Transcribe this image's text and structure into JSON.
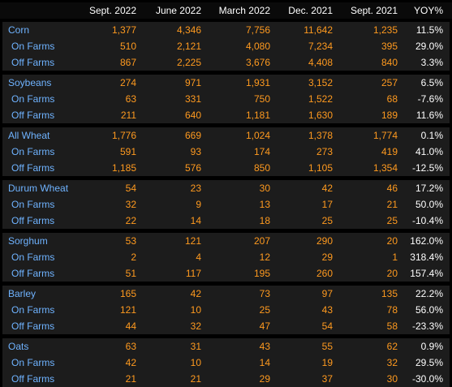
{
  "columns": [
    "Sept. 2022",
    "June 2022",
    "March 2022",
    "Dec. 2021",
    "Sept. 2021",
    "YOY%"
  ],
  "groups": [
    {
      "name": "Corn",
      "rows": [
        {
          "label": "Corn",
          "values": [
            "1,377",
            "4,346",
            "7,756",
            "11,642",
            "1,235",
            "11.5%"
          ]
        },
        {
          "label": "On Farms",
          "values": [
            "510",
            "2,121",
            "4,080",
            "7,234",
            "395",
            "29.0%"
          ]
        },
        {
          "label": "Off Farms",
          "values": [
            "867",
            "2,225",
            "3,676",
            "4,408",
            "840",
            "3.3%"
          ]
        }
      ]
    },
    {
      "name": "Soybeans",
      "rows": [
        {
          "label": "Soybeans",
          "values": [
            "274",
            "971",
            "1,931",
            "3,152",
            "257",
            "6.5%"
          ]
        },
        {
          "label": "On Farms",
          "values": [
            "63",
            "331",
            "750",
            "1,522",
            "68",
            "-7.6%"
          ]
        },
        {
          "label": "Off Farms",
          "values": [
            "211",
            "640",
            "1,181",
            "1,630",
            "189",
            "11.6%"
          ]
        }
      ]
    },
    {
      "name": "All Wheat",
      "rows": [
        {
          "label": "All Wheat",
          "values": [
            "1,776",
            "669",
            "1,024",
            "1,378",
            "1,774",
            "0.1%"
          ]
        },
        {
          "label": "On Farms",
          "values": [
            "591",
            "93",
            "174",
            "273",
            "419",
            "41.0%"
          ]
        },
        {
          "label": "Off Farms",
          "values": [
            "1,185",
            "576",
            "850",
            "1,105",
            "1,354",
            "-12.5%"
          ]
        }
      ]
    },
    {
      "name": "Durum Wheat",
      "rows": [
        {
          "label": "Durum Wheat",
          "values": [
            "54",
            "23",
            "30",
            "42",
            "46",
            "17.2%"
          ]
        },
        {
          "label": "On Farms",
          "values": [
            "32",
            "9",
            "13",
            "17",
            "21",
            "50.0%"
          ]
        },
        {
          "label": "Off Farms",
          "values": [
            "22",
            "14",
            "18",
            "25",
            "25",
            "-10.4%"
          ]
        }
      ]
    },
    {
      "name": "Sorghum",
      "rows": [
        {
          "label": "Sorghum",
          "values": [
            "53",
            "121",
            "207",
            "290",
            "20",
            "162.0%"
          ]
        },
        {
          "label": "On Farms",
          "values": [
            "2",
            "4",
            "12",
            "29",
            "1",
            "318.4%"
          ]
        },
        {
          "label": "Off Farms",
          "values": [
            "51",
            "117",
            "195",
            "260",
            "20",
            "157.4%"
          ]
        }
      ]
    },
    {
      "name": "Barley",
      "rows": [
        {
          "label": "Barley",
          "values": [
            "165",
            "42",
            "73",
            "97",
            "135",
            "22.2%"
          ]
        },
        {
          "label": "On Farms",
          "values": [
            "121",
            "10",
            "25",
            "43",
            "78",
            "56.0%"
          ]
        },
        {
          "label": "Off Farms",
          "values": [
            "44",
            "32",
            "47",
            "54",
            "58",
            "-23.3%"
          ]
        }
      ]
    },
    {
      "name": "Oats",
      "rows": [
        {
          "label": "Oats",
          "values": [
            "63",
            "31",
            "43",
            "55",
            "62",
            "0.9%"
          ]
        },
        {
          "label": "On Farms",
          "values": [
            "42",
            "10",
            "14",
            "19",
            "32",
            "29.5%"
          ]
        },
        {
          "label": "Off Farms",
          "values": [
            "21",
            "21",
            "29",
            "37",
            "30",
            "-30.0%"
          ]
        }
      ]
    }
  ],
  "colors": {
    "background": "#000000",
    "group_background": "#1c1c1c",
    "header_text": "#ffffff",
    "label_text": "#6fb3ff",
    "value_text": "#ff9a1f",
    "yoy_text": "#ffffff"
  }
}
